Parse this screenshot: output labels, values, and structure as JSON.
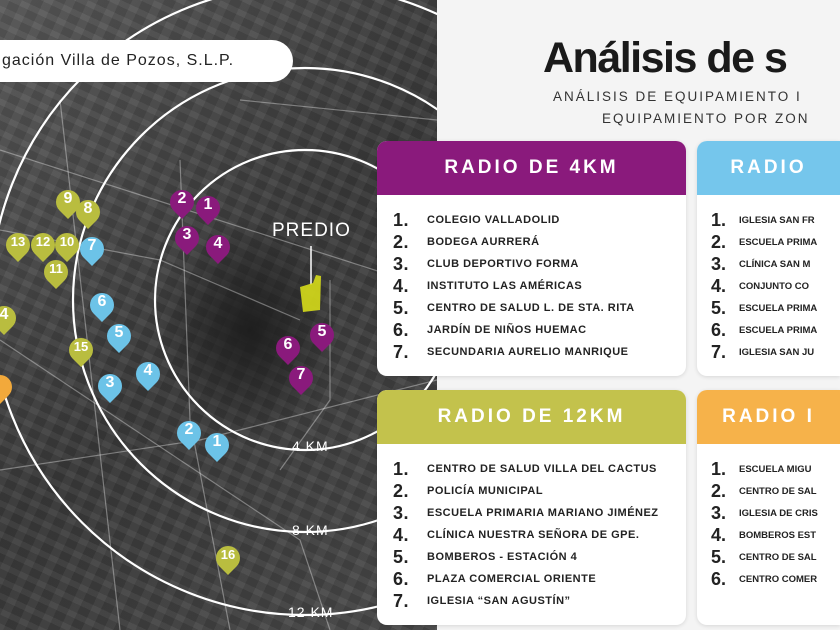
{
  "map": {
    "location_label": "gación Villa de Pozos, S.L.P.",
    "predio_label": "PREDIO",
    "rings": [
      "4 KM",
      "8 KM",
      "12 KM"
    ],
    "colors": {
      "purple": "#8a1a7c",
      "blue": "#6cc3e8",
      "green": "#b9bd3f",
      "orange": "#f2a93b",
      "predio": "#d6dc1a"
    },
    "markers": {
      "purple": [
        "1",
        "2",
        "3",
        "4",
        "5",
        "6",
        "7"
      ],
      "blue": [
        "1",
        "2",
        "3",
        "4",
        "5",
        "6",
        "7"
      ],
      "green": [
        "9",
        "8",
        "13",
        "12",
        "10",
        "11",
        "4",
        "15",
        "16"
      ],
      "orange": [
        ""
      ]
    }
  },
  "header": {
    "title": "Análisis de s",
    "subtitle_1": "ANÁLISIS DE EQUIPAMIENTO I",
    "subtitle_2": "EQUIPAMIENTO POR ZON"
  },
  "cards": [
    {
      "title": "RADIO DE 4KM",
      "color": "#8a1a7c",
      "items": [
        "COLEGIO VALLADOLID",
        "BODEGA AURRERÁ",
        "CLUB DEPORTIVO FORMA",
        "INSTITUTO LAS AMÉRICAS",
        "CENTRO DE SALUD L. DE STA. RITA",
        "JARDÍN DE NIÑOS HUEMAC",
        "SECUNDARIA AURELIO MANRIQUE"
      ]
    },
    {
      "title": "RADIO",
      "color": "#75c6ec",
      "items": [
        "IGLESIA SAN FR",
        "ESCUELA PRIMA",
        "CLÍNICA SAN M",
        "CONJUNTO CO",
        "ESCUELA PRIMA",
        "ESCUELA PRIMA",
        "IGLESIA SAN JU"
      ]
    },
    {
      "title": "RADIO DE 12KM",
      "color": "#c3c24c",
      "items": [
        "CENTRO DE SALUD VILLA DEL CACTUS",
        "POLICÍA MUNICIPAL",
        "ESCUELA PRIMARIA MARIANO JIMÉNEZ",
        "CLÍNICA NUESTRA SEÑORA DE GPE.",
        "BOMBEROS - ESTACIÓN 4",
        "PLAZA COMERCIAL ORIENTE",
        "IGLESIA “SAN AGUSTÍN”"
      ]
    },
    {
      "title": "RADIO I",
      "color": "#f6b24a",
      "items": [
        "ESCUELA MIGU",
        "CENTRO DE SAL",
        "IGLESIA DE CRIS",
        "BOMBEROS EST",
        "CENTRO DE SAL",
        "CENTRO COMER"
      ]
    }
  ]
}
